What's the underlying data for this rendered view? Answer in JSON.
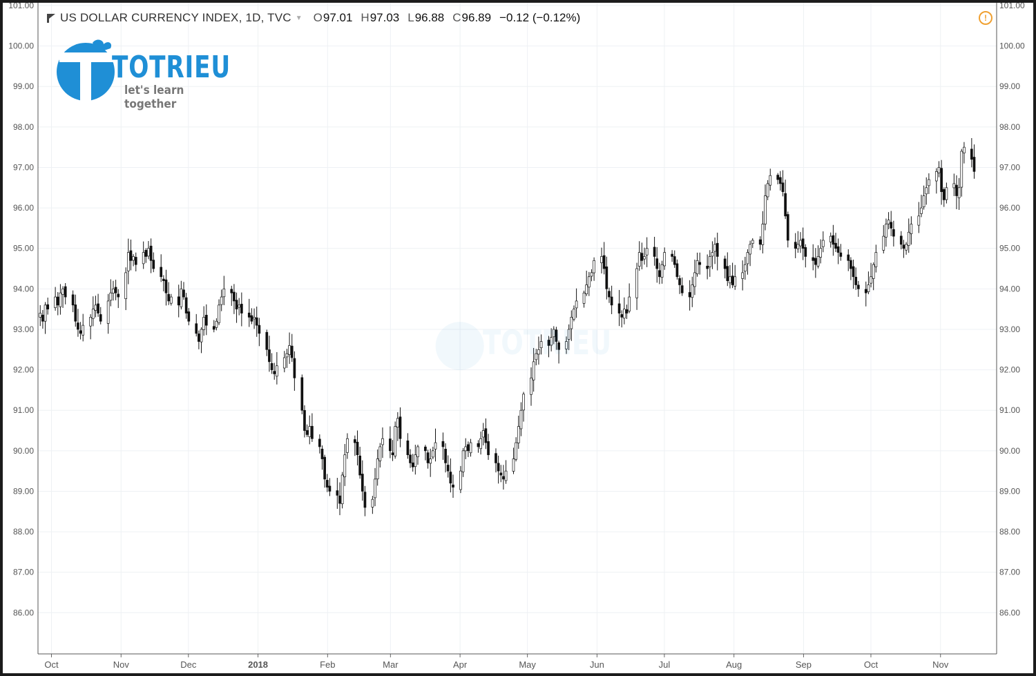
{
  "legend": {
    "title": "US DOLLAR CURRENCY INDEX, 1D, TVC",
    "open_label": "O",
    "open": "97.01",
    "high_label": "H",
    "high": "97.03",
    "low_label": "L",
    "low": "96.88",
    "close_label": "C",
    "close": "96.89",
    "change": "−0.12 (−0.12%)"
  },
  "icons": {
    "flag": "flag-icon",
    "caret": "caret-down-icon",
    "warning": "warning-circle-icon"
  },
  "logo": {
    "word": "TOTRIEU",
    "tagline": "let's learn together",
    "color": "#1f8fd6"
  },
  "colors": {
    "background": "#ffffff",
    "grid": "#eef1f4",
    "candle": "#111111",
    "axis_text": "#555555"
  },
  "chart_data": {
    "type": "candlestick",
    "title": "US DOLLAR CURRENCY INDEX, 1D, TVC",
    "y_ticks": [
      "101.00",
      "100.00",
      "99.00",
      "98.00",
      "97.00",
      "96.00",
      "95.00",
      "94.00",
      "93.00",
      "92.00",
      "91.00",
      "90.00",
      "89.00",
      "88.00",
      "87.00",
      "86.00"
    ],
    "ylim": [
      85.05,
      101.0
    ],
    "x_tick_labels": [
      "Oct",
      "Nov",
      "Dec",
      "2018",
      "Feb",
      "Mar",
      "Apr",
      "May",
      "Jun",
      "Jul",
      "Aug",
      "Sep",
      "Oct",
      "Nov"
    ],
    "x_tick_dates": [
      "2017-10-01",
      "2017-11-01",
      "2017-12-01",
      "2018-01-01",
      "2018-02-01",
      "2018-03-01",
      "2018-04-01",
      "2018-05-01",
      "2018-06-01",
      "2018-07-01",
      "2018-08-01",
      "2018-09-01",
      "2018-10-01",
      "2018-11-01"
    ],
    "xlim": [
      "2017-09-25",
      "2018-11-26"
    ],
    "closes": [
      93.4,
      93.2,
      93.6,
      93.5,
      93.8,
      93.6,
      93.9,
      94.0,
      93.8,
      93.6,
      93.2,
      93.0,
      92.9,
      93.1,
      93.3,
      93.5,
      93.6,
      93.4,
      93.2,
      93.7,
      93.9,
      94.0,
      93.9,
      93.8,
      94.4,
      94.9,
      94.7,
      94.8,
      94.6,
      94.9,
      94.8,
      95.0,
      94.7,
      94.5,
      94.3,
      94.2,
      93.9,
      93.7,
      93.8,
      93.6,
      94.0,
      93.8,
      93.4,
      93.2,
      92.9,
      92.7,
      93.0,
      93.3,
      93.1,
      93.0,
      93.2,
      93.6,
      93.8,
      94.0,
      93.9,
      93.7,
      93.5,
      93.6,
      93.4,
      93.3,
      93.2,
      93.3,
      93.1,
      92.9,
      92.5,
      92.2,
      92.0,
      91.9,
      92.1,
      92.3,
      92.4,
      92.6,
      92.3,
      91.8,
      91.0,
      90.5,
      90.4,
      90.6,
      90.3,
      90.1,
      89.8,
      89.3,
      89.1,
      89.0,
      88.9,
      88.7,
      89.4,
      89.9,
      90.3,
      90.2,
      89.9,
      89.4,
      89.0,
      88.6,
      88.8,
      89.3,
      89.8,
      90.1,
      90.3,
      90.0,
      89.9,
      90.6,
      90.8,
      90.3,
      89.9,
      89.7,
      89.6,
      89.9,
      90.1,
      90.0,
      89.7,
      89.8,
      90.0,
      90.2,
      90.1,
      89.7,
      89.5,
      89.2,
      89.1,
      89.5,
      90.0,
      90.1,
      90.0,
      90.2,
      90.1,
      90.3,
      90.5,
      90.2,
      89.9,
      89.7,
      89.5,
      89.4,
      89.3,
      89.5,
      89.8,
      90.2,
      90.6,
      91.0,
      91.4,
      91.8,
      92.2,
      92.4,
      92.5,
      92.7,
      92.6,
      92.8,
      93.0,
      92.7,
      92.5,
      92.7,
      93.0,
      93.3,
      93.5,
      93.7,
      93.9,
      94.1,
      94.3,
      94.4,
      94.7,
      94.8,
      94.5,
      94.0,
      93.8,
      93.6,
      93.4,
      93.3,
      93.5,
      93.4,
      93.8,
      94.5,
      94.9,
      94.7,
      94.8,
      95.0,
      94.8,
      94.5,
      94.3,
      94.6,
      94.9,
      94.8,
      94.6,
      94.3,
      94.1,
      93.9,
      93.8,
      94.1,
      94.4,
      94.7,
      94.6,
      94.5,
      94.8,
      94.9,
      95.1,
      94.8,
      94.5,
      94.2,
      94.3,
      94.1,
      94.3,
      94.4,
      94.6,
      94.9,
      95.1,
      95.2,
      95.1,
      95.6,
      96.3,
      96.6,
      96.8,
      96.7,
      96.6,
      96.4,
      95.8,
      95.2,
      95.0,
      95.1,
      95.2,
      95.0,
      94.8,
      94.7,
      94.6,
      94.8,
      95.0,
      95.2,
      95.3,
      95.1,
      95.0,
      94.9,
      94.8,
      94.7,
      94.5,
      94.3,
      94.1,
      94.0,
      93.9,
      94.1,
      94.3,
      94.6,
      94.9,
      95.3,
      95.6,
      95.7,
      95.5,
      95.3,
      95.1,
      95.0,
      95.1,
      95.4,
      95.6,
      95.8,
      96.0,
      96.3,
      96.5,
      96.7,
      96.9,
      97.0,
      96.4,
      96.2,
      96.5,
      96.6,
      96.3,
      96.5,
      97.4,
      97.5,
      97.2,
      96.9
    ]
  }
}
